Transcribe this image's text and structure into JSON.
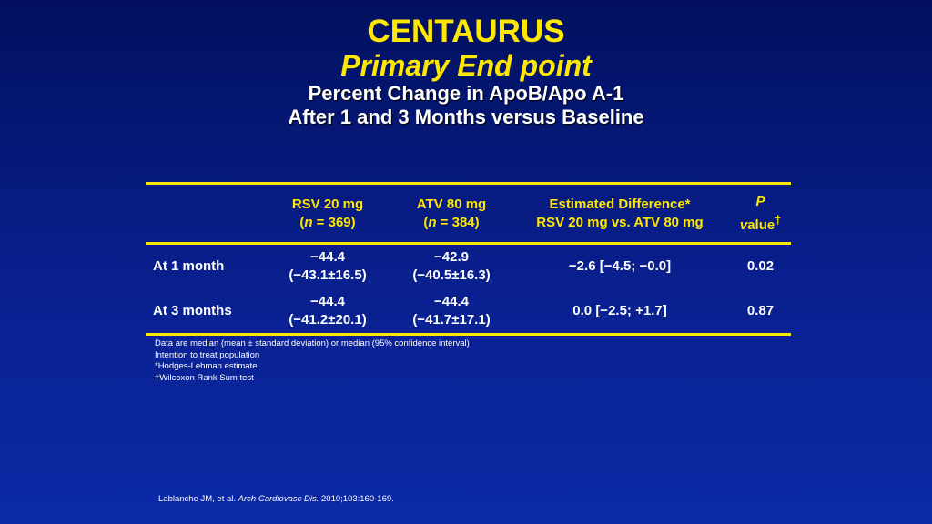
{
  "title": {
    "line1": "CENTAURUS",
    "line2": "Primary End point",
    "line3": "Percent Change in ApoB/Apo A-1",
    "line4": "After 1 and 3 Months versus Baseline"
  },
  "table": {
    "headers": [
      {
        "line1": "",
        "line2": ""
      },
      {
        "line1": "RSV 20 mg",
        "line2_pre": "(",
        "line2_italic": "n",
        "line2_post": " = 369)"
      },
      {
        "line1": "ATV 80 mg",
        "line2_pre": "(",
        "line2_italic": "n",
        "line2_post": " = 384)"
      },
      {
        "line1": "Estimated Difference*",
        "line2": "RSV 20 mg vs. ATV 80 mg"
      },
      {
        "line1_italic": "P",
        "line2_italic": "v",
        "line2_post": "alue",
        "line2_sup": "†"
      }
    ],
    "rows": [
      {
        "label": "At 1 month",
        "rsv_median": "−44.4",
        "rsv_mean": "(−43.1±16.5)",
        "atv_median": "−42.9",
        "atv_mean": "(−40.5±16.3)",
        "difference": "−2.6 [−4.5; −0.0]",
        "p_value": "0.02"
      },
      {
        "label": "At 3 months",
        "rsv_median": "−44.4",
        "rsv_mean": "(−41.2±20.1)",
        "atv_median": "−44.4",
        "atv_mean": "(−41.7±17.1)",
        "difference": "0.0 [−2.5; +1.7]",
        "p_value": "0.87"
      }
    ]
  },
  "footnotes": [
    "Data are median (mean ± standard deviation) or median (95% confidence interval)",
    "Intention to treat population",
    "*Hodges-Lehman estimate",
    "†Wilcoxon Rank Sum test"
  ],
  "reference": {
    "authors": "Lablanche JM, et al. ",
    "journal": "Arch Cardiovasc Dis.",
    "citation": " 2010;103:160-169."
  },
  "colors": {
    "accent_yellow": "#ffe800",
    "background_top": "#02105e",
    "background_bottom": "#0b2aa6"
  }
}
